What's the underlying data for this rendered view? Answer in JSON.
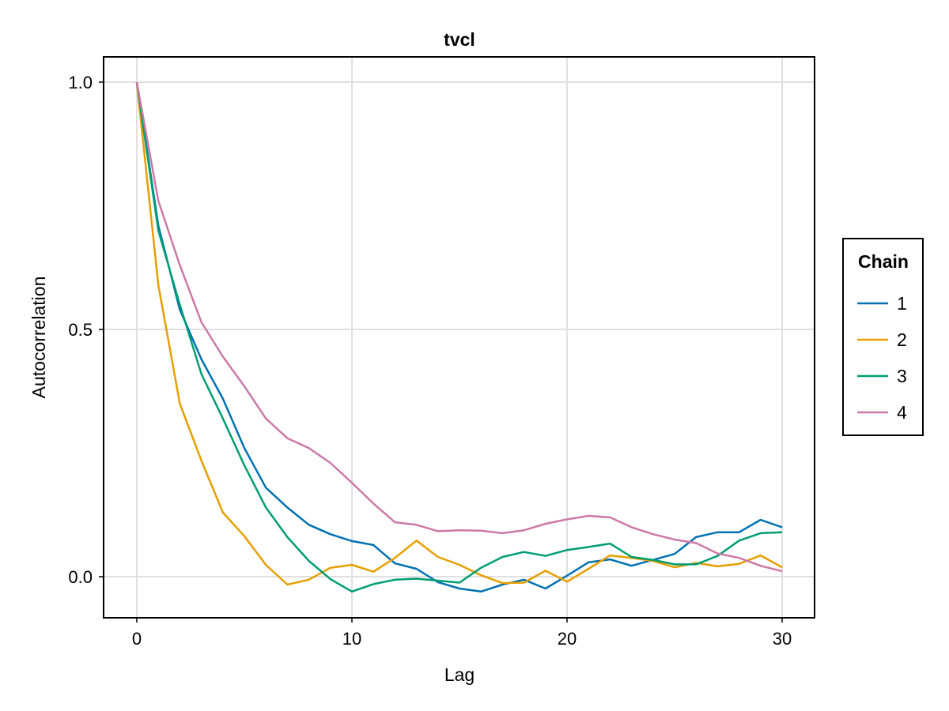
{
  "chart_data": {
    "type": "line",
    "title": "tvcl",
    "xlabel": "Lag",
    "ylabel": "Autocorrelation",
    "xlim": [
      -1.5,
      31.5
    ],
    "ylim": [
      -0.08,
      1.05
    ],
    "xticks": [
      0,
      10,
      20,
      30
    ],
    "xtick_labels": [
      "0",
      "10",
      "20",
      "30"
    ],
    "yticks": [
      0.0,
      0.5,
      1.0
    ],
    "ytick_labels": [
      "0.0",
      "0.5",
      "1.0"
    ],
    "grid": true,
    "legend": {
      "title": "Chain",
      "position": "right"
    },
    "x": [
      0,
      1,
      2,
      3,
      4,
      5,
      6,
      7,
      8,
      9,
      10,
      11,
      12,
      13,
      14,
      15,
      16,
      17,
      18,
      19,
      20,
      21,
      22,
      23,
      24,
      25,
      26,
      27,
      28,
      29,
      30
    ],
    "series": [
      {
        "name": "1",
        "color": "#0072b2",
        "values": [
          1.0,
          0.71,
          0.54,
          0.44,
          0.36,
          0.26,
          0.18,
          0.14,
          0.105,
          0.086,
          0.072,
          0.064,
          0.027,
          0.016,
          -0.011,
          -0.024,
          -0.03,
          -0.016,
          -0.006,
          -0.024,
          0.002,
          0.029,
          0.035,
          0.022,
          0.034,
          0.046,
          0.08,
          0.09,
          0.09,
          0.115,
          0.1
        ]
      },
      {
        "name": "2",
        "color": "#e69f00",
        "values": [
          1.0,
          0.59,
          0.35,
          0.235,
          0.13,
          0.082,
          0.024,
          -0.016,
          -0.006,
          0.018,
          0.024,
          0.01,
          0.038,
          0.073,
          0.04,
          0.024,
          0.003,
          -0.013,
          -0.012,
          0.012,
          -0.01,
          0.016,
          0.043,
          0.038,
          0.032,
          0.019,
          0.028,
          0.021,
          0.026,
          0.043,
          0.019
        ]
      },
      {
        "name": "3",
        "color": "#009e73",
        "values": [
          1.0,
          0.7,
          0.55,
          0.41,
          0.32,
          0.225,
          0.14,
          0.08,
          0.032,
          -0.005,
          -0.03,
          -0.015,
          -0.006,
          -0.004,
          -0.008,
          -0.012,
          0.018,
          0.04,
          0.05,
          0.042,
          0.054,
          0.06,
          0.067,
          0.04,
          0.034,
          0.025,
          0.025,
          0.042,
          0.073,
          0.088,
          0.09
        ]
      },
      {
        "name": "4",
        "color": "#cc79a7",
        "values": [
          1.0,
          0.76,
          0.63,
          0.515,
          0.445,
          0.385,
          0.32,
          0.28,
          0.26,
          0.23,
          0.19,
          0.148,
          0.11,
          0.105,
          0.092,
          0.094,
          0.093,
          0.088,
          0.094,
          0.107,
          0.116,
          0.123,
          0.12,
          0.1,
          0.086,
          0.075,
          0.068,
          0.047,
          0.038,
          0.022,
          0.011
        ]
      }
    ]
  }
}
